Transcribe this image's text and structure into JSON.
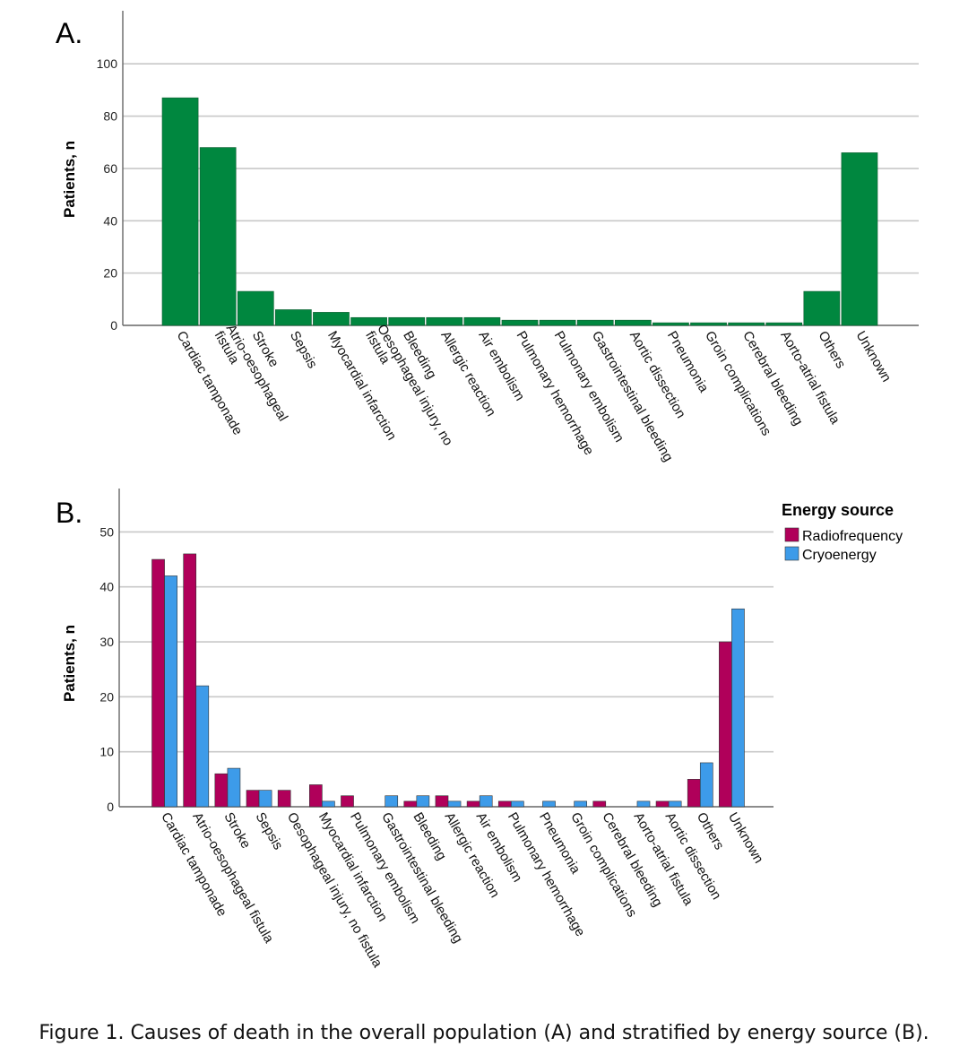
{
  "chart_data": [
    {
      "panel_label": "A.",
      "type": "bar",
      "title": "",
      "xlabel": "",
      "ylabel": "Patients, n",
      "ylim": [
        0,
        110
      ],
      "yticks": [
        0,
        20,
        40,
        60,
        80,
        100
      ],
      "grid": true,
      "color": "#00873f",
      "categories": [
        "Cardiac tamponade",
        "Atrio-oesophageal fistula",
        "Stroke",
        "Sepsis",
        "Myocardial infarction",
        "Oesophageal injury, no fistula",
        "Bleeding",
        "Allergic reaction",
        "Air embolism",
        "Pulmonary hemorrhage",
        "Pulmonary embolism",
        "Gastrointestinal bleeding",
        "Aortic dissection",
        "Pneumonia",
        "Groin complications",
        "Cerebral bleeding",
        "Aorto-atrial fistula",
        "Others",
        "Unknown"
      ],
      "values": [
        87,
        68,
        13,
        6,
        5,
        3,
        3,
        3,
        3,
        2,
        2,
        2,
        2,
        1,
        1,
        1,
        1,
        13,
        66
      ]
    },
    {
      "panel_label": "B.",
      "type": "bar",
      "title": "",
      "xlabel": "",
      "ylabel": "Patients, n",
      "ylim": [
        0,
        53
      ],
      "yticks": [
        0,
        10,
        20,
        30,
        40,
        50
      ],
      "grid": true,
      "legend": {
        "title": "Energy source",
        "placement": "top-right"
      },
      "categories": [
        "Cardiac tamponade",
        "Atrio-oesophageal fistula",
        "Stroke",
        "Sepsis",
        "Oesophageal injury, no fistula",
        "Myocardial infarction",
        "Pulmonary embolism",
        "Gastrointestinal bleeding",
        "Bleeding",
        "Allergic reaction",
        "Air embolism",
        "Pulmonary hemorrhage",
        "Pneumonia",
        "Groin complications",
        "Cerebral bleeding",
        "Aorto-atrial fistula",
        "Aortic dissection",
        "Others",
        "Unknown"
      ],
      "series": [
        {
          "name": "Radiofrequency",
          "color": "#b0005a",
          "values": [
            45,
            46,
            6,
            3,
            3,
            4,
            2,
            0,
            1,
            2,
            1,
            1,
            0,
            0,
            1,
            0,
            1,
            5,
            30
          ]
        },
        {
          "name": "Cryoenergy",
          "color": "#3d9be9",
          "values": [
            42,
            22,
            7,
            3,
            0,
            1,
            0,
            2,
            2,
            1,
            2,
            1,
            1,
            1,
            0,
            1,
            1,
            8,
            36
          ]
        }
      ]
    }
  ],
  "caption": "Figure 1. Causes of death in the overall population (A) and stratified by energy source (B)."
}
